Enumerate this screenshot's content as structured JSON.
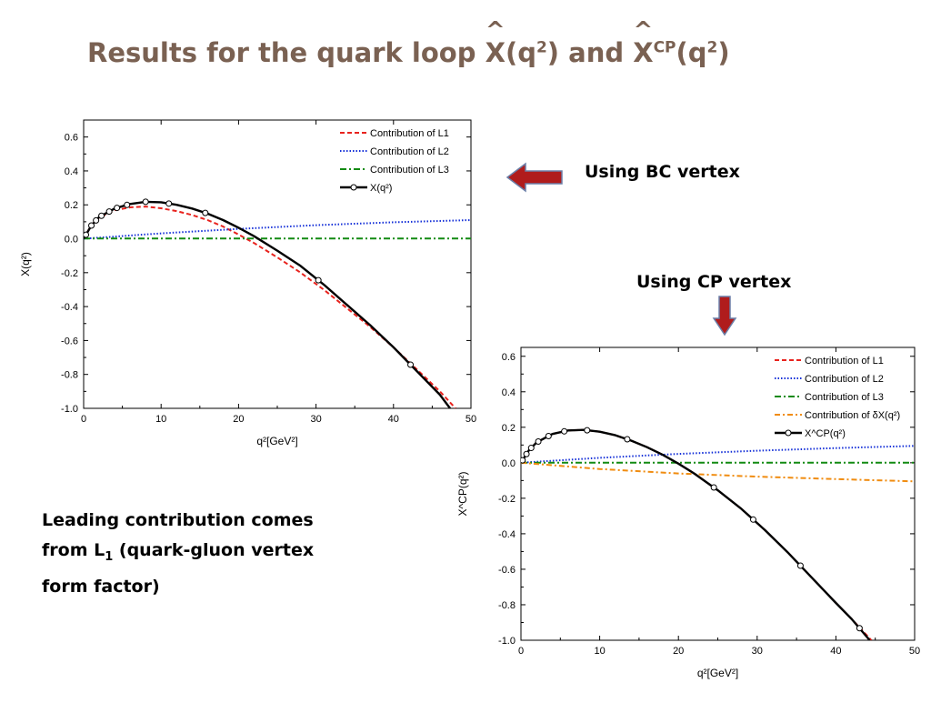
{
  "slide": {
    "title_parts": {
      "a": "Results for the quark loop ",
      "x1": "X",
      "b": "(q",
      "sup1": "2",
      "c": ") and ",
      "x2": "X",
      "sup_cp": "CP",
      "d": "(q",
      "sup2": "2",
      "e": ")"
    },
    "label_bc": "Using BC vertex",
    "label_cp": "Using CP vertex",
    "lead_line1": "Leading contribution comes",
    "lead_line2a": "from  L",
    "lead_line2sub": "1",
    "lead_line2b": "  (quark-gluon vertex",
    "lead_line3": "form factor)",
    "arrow_color": "#b01c1c"
  },
  "chart_data": [
    {
      "type": "line",
      "xlabel": "q²[GeV²]",
      "ylabel": "X(q²)",
      "xlim": [
        0,
        50
      ],
      "ylim": [
        -1.0,
        0.7
      ],
      "xticks": [
        0,
        10,
        20,
        30,
        40,
        50
      ],
      "yticks": [
        -1.0,
        -0.8,
        -0.6,
        -0.4,
        -0.2,
        0.0,
        0.2,
        0.4,
        0.6
      ],
      "legend_position": "top-right",
      "series": [
        {
          "name": "Contribution of L1",
          "color": "#e8231e",
          "dash": "5,3",
          "x": [
            0,
            1,
            2,
            4,
            6,
            8,
            10,
            12,
            14,
            16,
            18,
            20,
            22,
            25,
            28,
            31,
            34,
            37,
            40,
            43,
            46,
            48
          ],
          "y": [
            0,
            0.08,
            0.125,
            0.168,
            0.185,
            0.19,
            0.18,
            0.163,
            0.14,
            0.11,
            0.072,
            0.025,
            -0.025,
            -0.11,
            -0.2,
            -0.3,
            -0.41,
            -0.52,
            -0.64,
            -0.77,
            -0.9,
            -1.0
          ]
        },
        {
          "name": "Contribution of L2",
          "color": "#1530d8",
          "dash": "1.5,2",
          "x": [
            0,
            10,
            20,
            30,
            40,
            50
          ],
          "y": [
            0,
            0.032,
            0.058,
            0.08,
            0.097,
            0.11
          ]
        },
        {
          "name": "Contribution of L3",
          "color": "#128a12",
          "dash": "7,3,2,3",
          "x": [
            0,
            50
          ],
          "y": [
            0.001,
            0.001
          ]
        },
        {
          "name": "X(q²)",
          "color": "#000000",
          "dash": "",
          "markers": true,
          "x": [
            0,
            1,
            2,
            4,
            6,
            8,
            10,
            12,
            14,
            16,
            18,
            20,
            22,
            25,
            28,
            31,
            34,
            37,
            40,
            43,
            46,
            47.3
          ],
          "y": [
            0,
            0.078,
            0.128,
            0.178,
            0.205,
            0.218,
            0.215,
            0.2,
            0.178,
            0.148,
            0.11,
            0.065,
            0.015,
            -0.07,
            -0.16,
            -0.27,
            -0.39,
            -0.51,
            -0.64,
            -0.78,
            -0.92,
            -1.0
          ],
          "marker_x": [
            0.3,
            1,
            1.6,
            2.3,
            3.3,
            4.3,
            5.6,
            8,
            11,
            15.7,
            30.3,
            42.2
          ]
        }
      ]
    },
    {
      "type": "line",
      "xlabel": "q²[GeV²]",
      "ylabel": "X^CP(q²)",
      "xlim": [
        0,
        50
      ],
      "ylim": [
        -1.0,
        0.65
      ],
      "xticks": [
        0,
        10,
        20,
        30,
        40,
        50
      ],
      "yticks": [
        -1.0,
        -0.8,
        -0.6,
        -0.4,
        -0.2,
        0.0,
        0.2,
        0.4,
        0.6
      ],
      "legend_position": "top-right",
      "series": [
        {
          "name": "Contribution of L1",
          "color": "#e8231e",
          "dash": "5,3",
          "x": [
            0,
            1,
            2,
            4,
            6,
            8,
            10,
            12,
            14,
            16,
            18,
            20,
            22,
            25,
            28,
            31,
            34,
            37,
            40,
            42,
            44.5
          ],
          "y": [
            0,
            0.07,
            0.115,
            0.162,
            0.182,
            0.185,
            0.175,
            0.155,
            0.125,
            0.088,
            0.045,
            -0.005,
            -0.06,
            -0.155,
            -0.26,
            -0.38,
            -0.51,
            -0.65,
            -0.79,
            -0.88,
            -1.0
          ]
        },
        {
          "name": "Contribution of L2",
          "color": "#1530d8",
          "dash": "1.5,2",
          "x": [
            0,
            10,
            20,
            30,
            40,
            50
          ],
          "y": [
            0,
            0.028,
            0.05,
            0.068,
            0.083,
            0.095
          ]
        },
        {
          "name": "Contribution of L3",
          "color": "#128a12",
          "dash": "7,3,2,3",
          "x": [
            0,
            50
          ],
          "y": [
            0.001,
            0.001
          ]
        },
        {
          "name": "Contribution of δX(q²)",
          "color": "#f08c10",
          "dash": "6,3,2,3",
          "x": [
            0,
            10,
            20,
            30,
            40,
            50
          ],
          "y": [
            0,
            -0.035,
            -0.06,
            -0.078,
            -0.092,
            -0.105
          ]
        },
        {
          "name": "X^CP(q²)",
          "color": "#000000",
          "dash": "",
          "markers": true,
          "x": [
            0,
            1,
            2,
            4,
            6,
            8,
            10,
            12,
            14,
            16,
            18,
            20,
            22,
            25,
            28,
            31,
            34,
            37,
            40,
            42,
            44.3
          ],
          "y": [
            0,
            0.07,
            0.115,
            0.162,
            0.182,
            0.185,
            0.175,
            0.155,
            0.125,
            0.088,
            0.045,
            -0.005,
            -0.06,
            -0.155,
            -0.26,
            -0.38,
            -0.51,
            -0.65,
            -0.79,
            -0.88,
            -1.0
          ],
          "marker_x": [
            0.2,
            0.7,
            1.3,
            2.2,
            3.5,
            5.5,
            8.4,
            13.5,
            24.5,
            29.5,
            35.5,
            43
          ]
        }
      ]
    }
  ]
}
